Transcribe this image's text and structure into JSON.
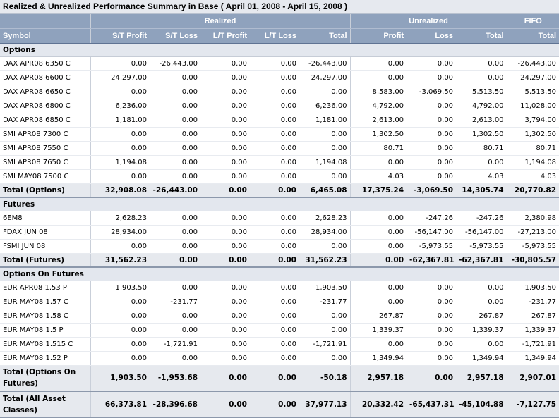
{
  "title": "Realized & Unrealized Performance Summary in Base ( April 01, 2008 - April 15, 2008 )",
  "groups": {
    "realized": "Realized",
    "unrealized": "Unrealized",
    "fifo": "FIFO"
  },
  "columns": [
    "Symbol",
    "S/T Profit",
    "S/T Loss",
    "L/T Profit",
    "L/T Loss",
    "Total",
    "Profit",
    "Loss",
    "Total",
    "Total"
  ],
  "sections": [
    {
      "name": "Options",
      "rows": [
        [
          "DAX APR08 6350 C",
          "0.00",
          "-26,443.00",
          "0.00",
          "0.00",
          "-26,443.00",
          "0.00",
          "0.00",
          "0.00",
          "-26,443.00"
        ],
        [
          "DAX APR08 6600 C",
          "24,297.00",
          "0.00",
          "0.00",
          "0.00",
          "24,297.00",
          "0.00",
          "0.00",
          "0.00",
          "24,297.00"
        ],
        [
          "DAX APR08 6650 C",
          "0.00",
          "0.00",
          "0.00",
          "0.00",
          "0.00",
          "8,583.00",
          "-3,069.50",
          "5,513.50",
          "5,513.50"
        ],
        [
          "DAX APR08 6800 C",
          "6,236.00",
          "0.00",
          "0.00",
          "0.00",
          "6,236.00",
          "4,792.00",
          "0.00",
          "4,792.00",
          "11,028.00"
        ],
        [
          "DAX APR08 6850 C",
          "1,181.00",
          "0.00",
          "0.00",
          "0.00",
          "1,181.00",
          "2,613.00",
          "0.00",
          "2,613.00",
          "3,794.00"
        ],
        [
          "SMI APR08 7300 C",
          "0.00",
          "0.00",
          "0.00",
          "0.00",
          "0.00",
          "1,302.50",
          "0.00",
          "1,302.50",
          "1,302.50"
        ],
        [
          "SMI APR08 7550 C",
          "0.00",
          "0.00",
          "0.00",
          "0.00",
          "0.00",
          "80.71",
          "0.00",
          "80.71",
          "80.71"
        ],
        [
          "SMI APR08 7650 C",
          "1,194.08",
          "0.00",
          "0.00",
          "0.00",
          "1,194.08",
          "0.00",
          "0.00",
          "0.00",
          "1,194.08"
        ],
        [
          "SMI MAY08 7500 C",
          "0.00",
          "0.00",
          "0.00",
          "0.00",
          "0.00",
          "4.03",
          "0.00",
          "4.03",
          "4.03"
        ]
      ],
      "total": [
        "Total (Options)",
        "32,908.08",
        "-26,443.00",
        "0.00",
        "0.00",
        "6,465.08",
        "17,375.24",
        "-3,069.50",
        "14,305.74",
        "20,770.82"
      ]
    },
    {
      "name": "Futures",
      "rows": [
        [
          "6EM8",
          "2,628.23",
          "0.00",
          "0.00",
          "0.00",
          "2,628.23",
          "0.00",
          "-247.26",
          "-247.26",
          "2,380.98"
        ],
        [
          "FDAX JUN 08",
          "28,934.00",
          "0.00",
          "0.00",
          "0.00",
          "28,934.00",
          "0.00",
          "-56,147.00",
          "-56,147.00",
          "-27,213.00"
        ],
        [
          "FSMI JUN 08",
          "0.00",
          "0.00",
          "0.00",
          "0.00",
          "0.00",
          "0.00",
          "-5,973.55",
          "-5,973.55",
          "-5,973.55"
        ]
      ],
      "total": [
        "Total (Futures)",
        "31,562.23",
        "0.00",
        "0.00",
        "0.00",
        "31,562.23",
        "0.00",
        "-62,367.81",
        "-62,367.81",
        "-30,805.57"
      ]
    },
    {
      "name": "Options On Futures",
      "rows": [
        [
          "EUR APR08 1.53 P",
          "1,903.50",
          "0.00",
          "0.00",
          "0.00",
          "1,903.50",
          "0.00",
          "0.00",
          "0.00",
          "1,903.50"
        ],
        [
          "EUR MAY08 1.57 C",
          "0.00",
          "-231.77",
          "0.00",
          "0.00",
          "-231.77",
          "0.00",
          "0.00",
          "0.00",
          "-231.77"
        ],
        [
          "EUR MAY08 1.58 C",
          "0.00",
          "0.00",
          "0.00",
          "0.00",
          "0.00",
          "267.87",
          "0.00",
          "267.87",
          "267.87"
        ],
        [
          "EUR MAY08 1.5 P",
          "0.00",
          "0.00",
          "0.00",
          "0.00",
          "0.00",
          "1,339.37",
          "0.00",
          "1,339.37",
          "1,339.37"
        ],
        [
          "EUR MAY08 1.515 C",
          "0.00",
          "-1,721.91",
          "0.00",
          "0.00",
          "-1,721.91",
          "0.00",
          "0.00",
          "0.00",
          "-1,721.91"
        ],
        [
          "EUR MAY08 1.52 P",
          "0.00",
          "0.00",
          "0.00",
          "0.00",
          "0.00",
          "1,349.94",
          "0.00",
          "1,349.94",
          "1,349.94"
        ]
      ],
      "total": [
        "Total (Options On Futures)",
        "1,903.50",
        "-1,953.68",
        "0.00",
        "0.00",
        "-50.18",
        "2,957.18",
        "0.00",
        "2,957.18",
        "2,907.01"
      ]
    }
  ],
  "grand_total": [
    "Total (All Asset Classes)",
    "66,373.81",
    "-28,396.68",
    "0.00",
    "0.00",
    "37,977.13",
    "20,332.42",
    "-65,437.31",
    "-45,104.88",
    "-7,127.75"
  ]
}
